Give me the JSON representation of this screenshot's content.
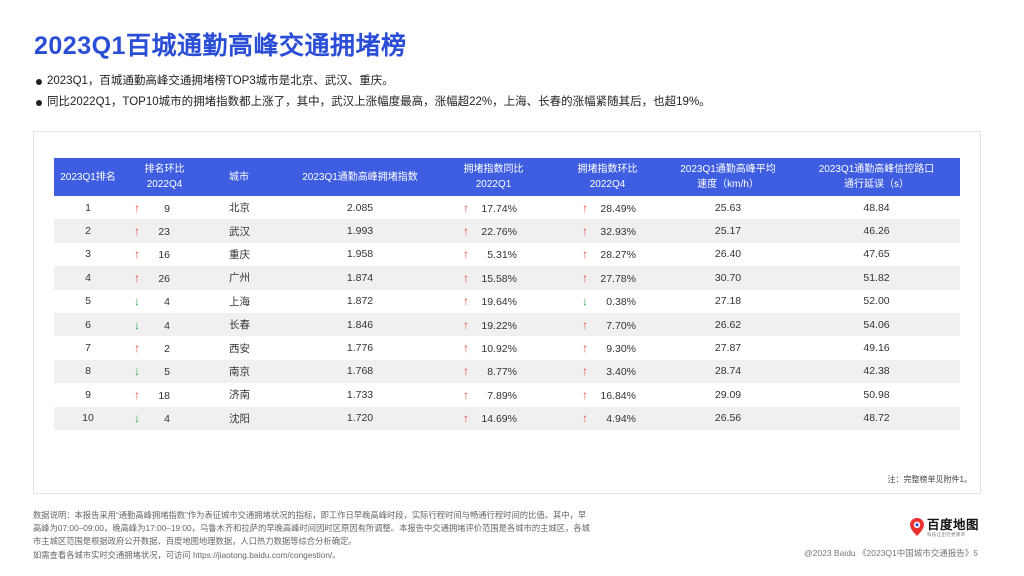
{
  "page": {
    "title": "2023Q1百城通勤高峰交通拥堵榜",
    "bullets": [
      "2023Q1，百城通勤高峰交通拥堵榜TOP3城市是北京、武汉、重庆。",
      "同比2022Q1，TOP10城市的拥堵指数都上涨了，其中，武汉上涨幅度最高，涨幅超22%，上海、长春的涨幅紧随其后，也超19%。"
    ]
  },
  "table": {
    "headers": {
      "rank": "2023Q1排名",
      "rank_change_line1": "排名环比",
      "rank_change_line2": "2022Q4",
      "city": "城市",
      "index": "2023Q1通勤高峰拥堵指数",
      "yoy_line1": "拥堵指数同比",
      "yoy_line2": "2022Q1",
      "qoq_line1": "拥堵指数环比",
      "qoq_line2": "2022Q4",
      "speed_line1": "2023Q1通勤高峰平均",
      "speed_line2": "速度（km/h）",
      "delay_line1": "2023Q1通勤高峰信控路口",
      "delay_line2": "通行延误（s）"
    },
    "rows": [
      {
        "rank": "1",
        "rank_dir": "up",
        "rank_change": "9",
        "city": "北京",
        "index": "2.085",
        "yoy_dir": "up",
        "yoy": "17.74%",
        "qoq_dir": "up",
        "qoq": "28.49%",
        "speed": "25.63",
        "delay": "48.84"
      },
      {
        "rank": "2",
        "rank_dir": "up",
        "rank_change": "23",
        "city": "武汉",
        "index": "1.993",
        "yoy_dir": "up",
        "yoy": "22.76%",
        "qoq_dir": "up",
        "qoq": "32.93%",
        "speed": "25.17",
        "delay": "46.26"
      },
      {
        "rank": "3",
        "rank_dir": "up",
        "rank_change": "16",
        "city": "重庆",
        "index": "1.958",
        "yoy_dir": "up",
        "yoy": "5.31%",
        "qoq_dir": "up",
        "qoq": "28.27%",
        "speed": "26.40",
        "delay": "47.65"
      },
      {
        "rank": "4",
        "rank_dir": "up",
        "rank_change": "26",
        "city": "广州",
        "index": "1.874",
        "yoy_dir": "up",
        "yoy": "15.58%",
        "qoq_dir": "up",
        "qoq": "27.78%",
        "speed": "30.70",
        "delay": "51.82"
      },
      {
        "rank": "5",
        "rank_dir": "down",
        "rank_change": "4",
        "city": "上海",
        "index": "1.872",
        "yoy_dir": "up",
        "yoy": "19.64%",
        "qoq_dir": "down",
        "qoq": "0.38%",
        "speed": "27.18",
        "delay": "52.00"
      },
      {
        "rank": "6",
        "rank_dir": "down",
        "rank_change": "4",
        "city": "长春",
        "index": "1.846",
        "yoy_dir": "up",
        "yoy": "19.22%",
        "qoq_dir": "up",
        "qoq": "7.70%",
        "speed": "26.62",
        "delay": "54.06"
      },
      {
        "rank": "7",
        "rank_dir": "up",
        "rank_change": "2",
        "city": "西安",
        "index": "1.776",
        "yoy_dir": "up",
        "yoy": "10.92%",
        "qoq_dir": "up",
        "qoq": "9.30%",
        "speed": "27.87",
        "delay": "49.16"
      },
      {
        "rank": "8",
        "rank_dir": "down",
        "rank_change": "5",
        "city": "南京",
        "index": "1.768",
        "yoy_dir": "up",
        "yoy": "8.77%",
        "qoq_dir": "up",
        "qoq": "3.40%",
        "speed": "28.74",
        "delay": "42.38"
      },
      {
        "rank": "9",
        "rank_dir": "up",
        "rank_change": "18",
        "city": "济南",
        "index": "1.733",
        "yoy_dir": "up",
        "yoy": "7.89%",
        "qoq_dir": "up",
        "qoq": "16.84%",
        "speed": "29.09",
        "delay": "50.98"
      },
      {
        "rank": "10",
        "rank_dir": "down",
        "rank_change": "4",
        "city": "沈阳",
        "index": "1.720",
        "yoy_dir": "up",
        "yoy": "14.69%",
        "qoq_dir": "up",
        "qoq": "4.94%",
        "speed": "26.56",
        "delay": "48.72"
      }
    ],
    "arrows": {
      "up": "↑",
      "down": "↓"
    },
    "note": "注：完整榜单见附件1。"
  },
  "footnote": {
    "lines": [
      "数据说明：本报告采用“通勤高峰拥堵指数”作为表征城市交通拥堵状况的指标，即工作日早晚高峰时段，实际行程时间与畅通行程时间的比值。其中，早",
      "高峰为07:00–09:00，晚高峰为17:00–19:00，乌鲁木齐和拉萨的早晚高峰时间因时区原因有所调整。本报告中交通拥堵评价范围是各城市的主城区，各城",
      "市主城区范围是根据政府公开数据、百度地图地理数据，人口热力数据等综合分析确定。",
      "如需查看各城市实时交通拥堵状况，可访问 https://jiaotong.baidu.com/congestion/。"
    ]
  },
  "logo": {
    "name": "百度地图",
    "tagline": "科技让出行更简单",
    "icon": "map-pin-icon"
  },
  "copyright": "@2023 Baidu 《2023Q1中国城市交通报告》5",
  "colors": {
    "title": "#2b4ed6",
    "header_bg": "#3e5de0",
    "arrow_up": "#e24a3b",
    "arrow_down": "#2fa84f",
    "zebra": "#f0f0f0"
  }
}
